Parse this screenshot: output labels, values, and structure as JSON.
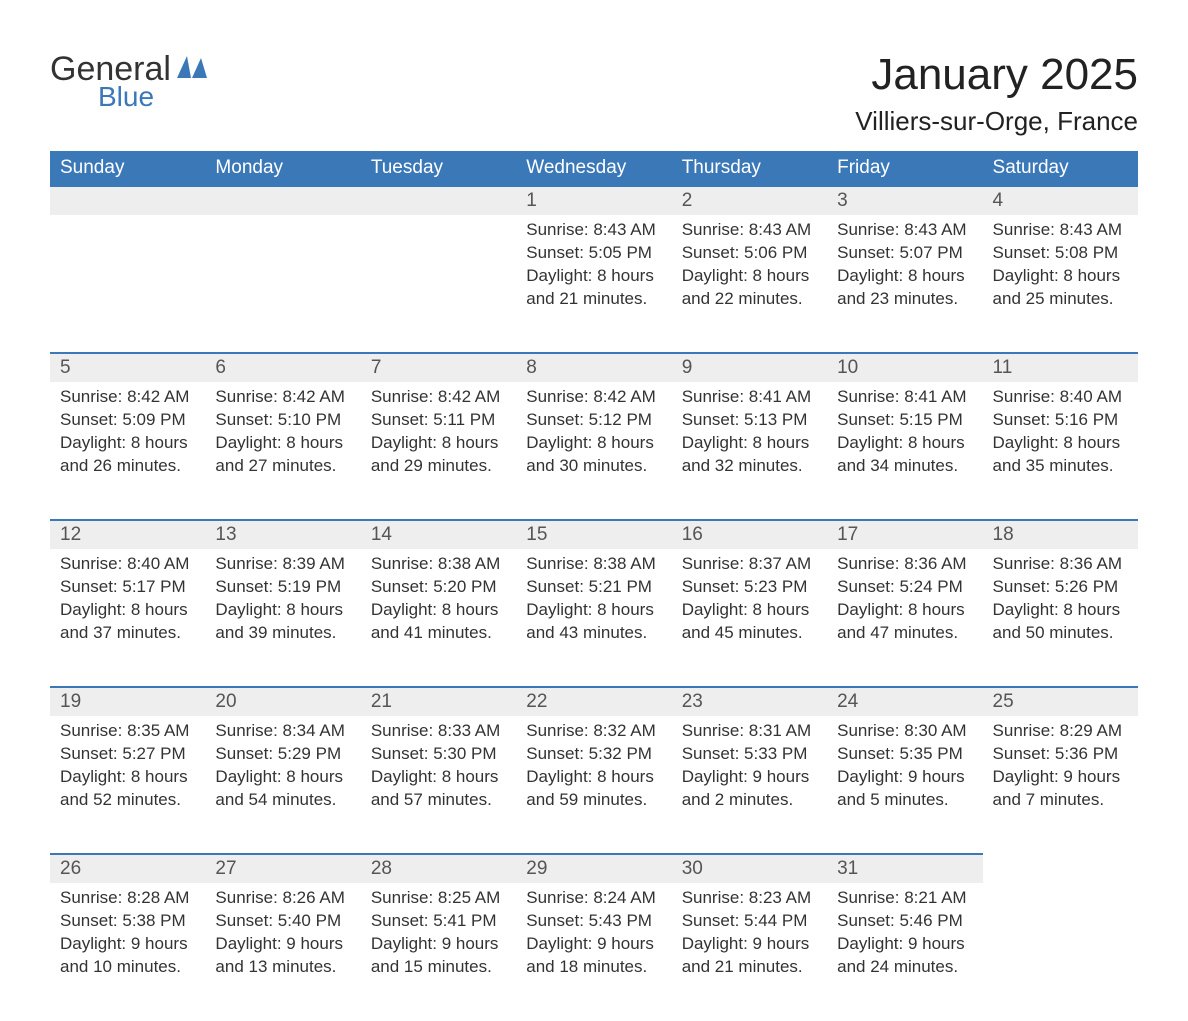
{
  "brand": {
    "part1": "General",
    "part2": "Blue"
  },
  "title": "January 2025",
  "location": "Villiers-sur-Orge, France",
  "colors": {
    "header_bg": "#3b78b8",
    "header_text": "#ffffff",
    "daynum_bg": "#eeeeee",
    "row_border": "#3b78b8",
    "page_bg": "#ffffff",
    "body_text": "#333333",
    "brand_blue": "#3b78b8"
  },
  "typography": {
    "title_fontsize": 44,
    "location_fontsize": 26,
    "header_fontsize": 19,
    "daynum_fontsize": 19,
    "body_fontsize": 17,
    "font_family": "Arial"
  },
  "calendar": {
    "type": "table",
    "columns": [
      "Sunday",
      "Monday",
      "Tuesday",
      "Wednesday",
      "Thursday",
      "Friday",
      "Saturday"
    ],
    "weeks": [
      [
        null,
        null,
        null,
        {
          "day": "1",
          "sunrise": "Sunrise: 8:43 AM",
          "sunset": "Sunset: 5:05 PM",
          "daylight": "Daylight: 8 hours and 21 minutes."
        },
        {
          "day": "2",
          "sunrise": "Sunrise: 8:43 AM",
          "sunset": "Sunset: 5:06 PM",
          "daylight": "Daylight: 8 hours and 22 minutes."
        },
        {
          "day": "3",
          "sunrise": "Sunrise: 8:43 AM",
          "sunset": "Sunset: 5:07 PM",
          "daylight": "Daylight: 8 hours and 23 minutes."
        },
        {
          "day": "4",
          "sunrise": "Sunrise: 8:43 AM",
          "sunset": "Sunset: 5:08 PM",
          "daylight": "Daylight: 8 hours and 25 minutes."
        }
      ],
      [
        {
          "day": "5",
          "sunrise": "Sunrise: 8:42 AM",
          "sunset": "Sunset: 5:09 PM",
          "daylight": "Daylight: 8 hours and 26 minutes."
        },
        {
          "day": "6",
          "sunrise": "Sunrise: 8:42 AM",
          "sunset": "Sunset: 5:10 PM",
          "daylight": "Daylight: 8 hours and 27 minutes."
        },
        {
          "day": "7",
          "sunrise": "Sunrise: 8:42 AM",
          "sunset": "Sunset: 5:11 PM",
          "daylight": "Daylight: 8 hours and 29 minutes."
        },
        {
          "day": "8",
          "sunrise": "Sunrise: 8:42 AM",
          "sunset": "Sunset: 5:12 PM",
          "daylight": "Daylight: 8 hours and 30 minutes."
        },
        {
          "day": "9",
          "sunrise": "Sunrise: 8:41 AM",
          "sunset": "Sunset: 5:13 PM",
          "daylight": "Daylight: 8 hours and 32 minutes."
        },
        {
          "day": "10",
          "sunrise": "Sunrise: 8:41 AM",
          "sunset": "Sunset: 5:15 PM",
          "daylight": "Daylight: 8 hours and 34 minutes."
        },
        {
          "day": "11",
          "sunrise": "Sunrise: 8:40 AM",
          "sunset": "Sunset: 5:16 PM",
          "daylight": "Daylight: 8 hours and 35 minutes."
        }
      ],
      [
        {
          "day": "12",
          "sunrise": "Sunrise: 8:40 AM",
          "sunset": "Sunset: 5:17 PM",
          "daylight": "Daylight: 8 hours and 37 minutes."
        },
        {
          "day": "13",
          "sunrise": "Sunrise: 8:39 AM",
          "sunset": "Sunset: 5:19 PM",
          "daylight": "Daylight: 8 hours and 39 minutes."
        },
        {
          "day": "14",
          "sunrise": "Sunrise: 8:38 AM",
          "sunset": "Sunset: 5:20 PM",
          "daylight": "Daylight: 8 hours and 41 minutes."
        },
        {
          "day": "15",
          "sunrise": "Sunrise: 8:38 AM",
          "sunset": "Sunset: 5:21 PM",
          "daylight": "Daylight: 8 hours and 43 minutes."
        },
        {
          "day": "16",
          "sunrise": "Sunrise: 8:37 AM",
          "sunset": "Sunset: 5:23 PM",
          "daylight": "Daylight: 8 hours and 45 minutes."
        },
        {
          "day": "17",
          "sunrise": "Sunrise: 8:36 AM",
          "sunset": "Sunset: 5:24 PM",
          "daylight": "Daylight: 8 hours and 47 minutes."
        },
        {
          "day": "18",
          "sunrise": "Sunrise: 8:36 AM",
          "sunset": "Sunset: 5:26 PM",
          "daylight": "Daylight: 8 hours and 50 minutes."
        }
      ],
      [
        {
          "day": "19",
          "sunrise": "Sunrise: 8:35 AM",
          "sunset": "Sunset: 5:27 PM",
          "daylight": "Daylight: 8 hours and 52 minutes."
        },
        {
          "day": "20",
          "sunrise": "Sunrise: 8:34 AM",
          "sunset": "Sunset: 5:29 PM",
          "daylight": "Daylight: 8 hours and 54 minutes."
        },
        {
          "day": "21",
          "sunrise": "Sunrise: 8:33 AM",
          "sunset": "Sunset: 5:30 PM",
          "daylight": "Daylight: 8 hours and 57 minutes."
        },
        {
          "day": "22",
          "sunrise": "Sunrise: 8:32 AM",
          "sunset": "Sunset: 5:32 PM",
          "daylight": "Daylight: 8 hours and 59 minutes."
        },
        {
          "day": "23",
          "sunrise": "Sunrise: 8:31 AM",
          "sunset": "Sunset: 5:33 PM",
          "daylight": "Daylight: 9 hours and 2 minutes."
        },
        {
          "day": "24",
          "sunrise": "Sunrise: 8:30 AM",
          "sunset": "Sunset: 5:35 PM",
          "daylight": "Daylight: 9 hours and 5 minutes."
        },
        {
          "day": "25",
          "sunrise": "Sunrise: 8:29 AM",
          "sunset": "Sunset: 5:36 PM",
          "daylight": "Daylight: 9 hours and 7 minutes."
        }
      ],
      [
        {
          "day": "26",
          "sunrise": "Sunrise: 8:28 AM",
          "sunset": "Sunset: 5:38 PM",
          "daylight": "Daylight: 9 hours and 10 minutes."
        },
        {
          "day": "27",
          "sunrise": "Sunrise: 8:26 AM",
          "sunset": "Sunset: 5:40 PM",
          "daylight": "Daylight: 9 hours and 13 minutes."
        },
        {
          "day": "28",
          "sunrise": "Sunrise: 8:25 AM",
          "sunset": "Sunset: 5:41 PM",
          "daylight": "Daylight: 9 hours and 15 minutes."
        },
        {
          "day": "29",
          "sunrise": "Sunrise: 8:24 AM",
          "sunset": "Sunset: 5:43 PM",
          "daylight": "Daylight: 9 hours and 18 minutes."
        },
        {
          "day": "30",
          "sunrise": "Sunrise: 8:23 AM",
          "sunset": "Sunset: 5:44 PM",
          "daylight": "Daylight: 9 hours and 21 minutes."
        },
        {
          "day": "31",
          "sunrise": "Sunrise: 8:21 AM",
          "sunset": "Sunset: 5:46 PM",
          "daylight": "Daylight: 9 hours and 24 minutes."
        },
        null
      ]
    ]
  }
}
